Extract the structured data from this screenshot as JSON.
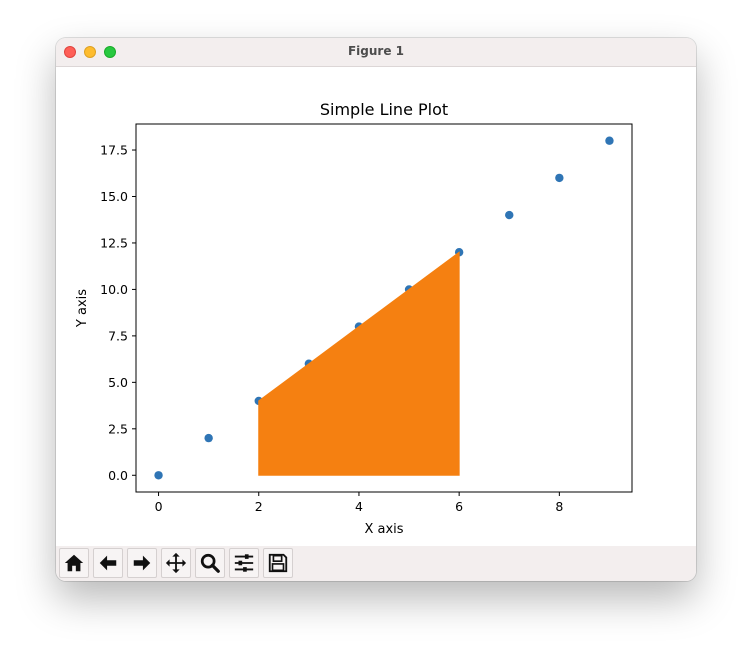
{
  "window": {
    "title": "Figure 1"
  },
  "toolbar": {
    "buttons": [
      {
        "name": "home-button",
        "icon": "home-icon"
      },
      {
        "name": "back-button",
        "icon": "arrow-left-icon"
      },
      {
        "name": "forward-button",
        "icon": "arrow-right-icon"
      },
      {
        "name": "pan-button",
        "icon": "move-icon"
      },
      {
        "name": "zoom-button",
        "icon": "magnifier-icon"
      },
      {
        "name": "configure-subplots-button",
        "icon": "sliders-icon"
      },
      {
        "name": "save-button",
        "icon": "floppy-disk-icon"
      }
    ]
  },
  "chart_data": {
    "type": "scatter",
    "title": "Simple Line Plot",
    "xlabel": "X axis",
    "ylabel": "Y axis",
    "xlim": [
      -0.45,
      9.45
    ],
    "ylim": [
      -0.9,
      18.9
    ],
    "xticks": [
      0,
      2,
      4,
      6,
      8
    ],
    "xtick_labels": [
      "0",
      "2",
      "4",
      "6",
      "8"
    ],
    "yticks": [
      0,
      2.5,
      5,
      7.5,
      10,
      12.5,
      15,
      17.5
    ],
    "ytick_labels": [
      "0.0",
      "2.5",
      "5.0",
      "7.5",
      "10.0",
      "12.5",
      "15.0",
      "17.5"
    ],
    "grid": false,
    "series": [
      {
        "type": "scatter",
        "color": "#2f75b5",
        "x": [
          0,
          1,
          2,
          3,
          4,
          5,
          6,
          7,
          8,
          9
        ],
        "y": [
          0,
          2,
          4,
          6,
          8,
          10,
          12,
          14,
          16,
          18
        ]
      },
      {
        "type": "area",
        "color": "#f58011",
        "x": [
          2,
          3,
          4,
          5,
          6
        ],
        "y": [
          4,
          6,
          8,
          10,
          12
        ],
        "baseline": 0
      }
    ]
  }
}
